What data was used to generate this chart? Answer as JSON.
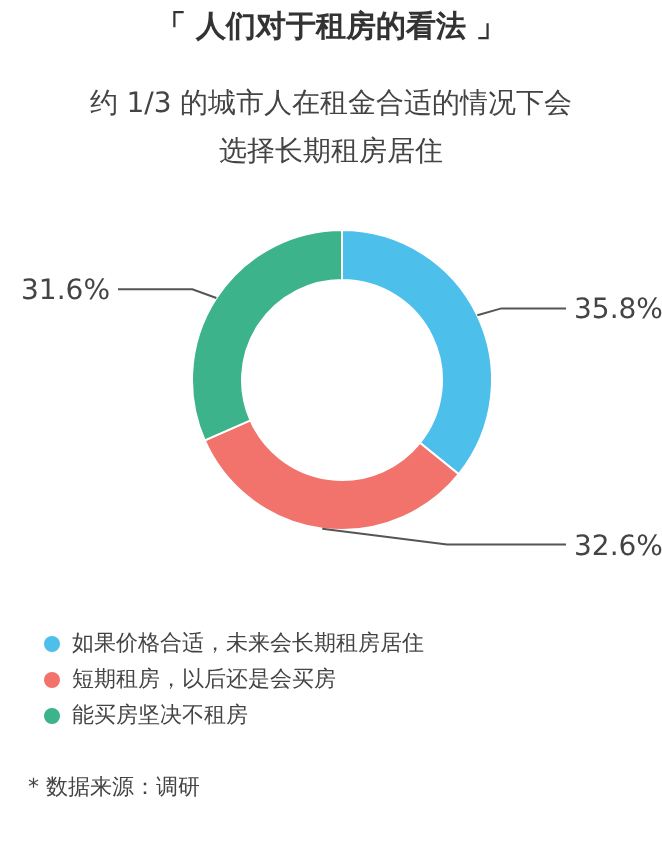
{
  "chart_data": {
    "type": "donut",
    "title": "「 人们对于租房的看法 」",
    "subtitle": "约 1/3 的城市人在租金合适的情况下会选择长期租房居住",
    "categories": [
      "如果价格合适，未来会长期租房居住",
      "短期租房，以后还是会买房",
      "能买房坚决不租房"
    ],
    "values": [
      35.8,
      32.6,
      31.6
    ],
    "colors": [
      "#4dbfeb",
      "#f2736b",
      "#3db38b"
    ],
    "value_labels": [
      "35.8%",
      "32.6%",
      "31.6%"
    ],
    "legend": "bottom",
    "annotations": [
      "* 数据来源：调研"
    ]
  }
}
